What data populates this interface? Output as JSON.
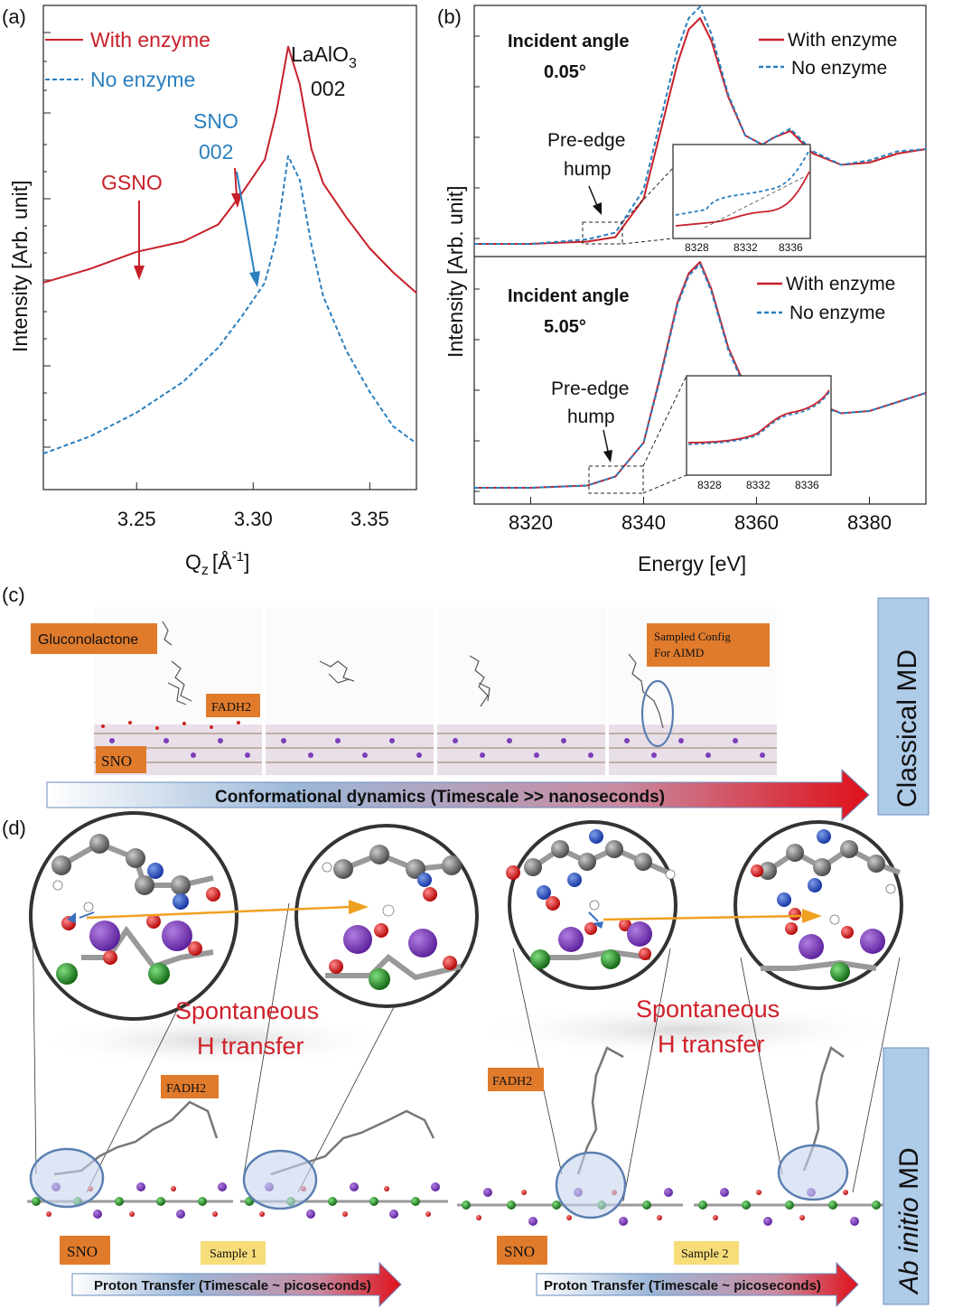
{
  "panel_labels": {
    "a": "(a)",
    "b": "(b)",
    "c": "(c)",
    "d": "(d)"
  },
  "colors": {
    "red": "#c8202a",
    "blue": "#2a7fbf",
    "orange": "#e07b2c",
    "sidebox": "#aecbe8"
  },
  "panel_a": {
    "legend_with": "With enzyme",
    "legend_without": "No enzyme",
    "label_lao": "LaAlO",
    "label_lao_sub": "3",
    "label_lao_002": "002",
    "label_sno": "SNO",
    "label_sno_002": "002",
    "label_gsno": "GSNO",
    "ylabel": "Intensity [Arb. unit]",
    "xlabel_q": "Q",
    "xlabel_sub": "z",
    "xlabel_unit": "[Å",
    "xlabel_exp": "-1",
    "xlabel_close": "]",
    "xticks": [
      "3.25",
      "3.30",
      "3.35"
    ]
  },
  "panel_b": {
    "top_title_1": "Incident angle",
    "top_title_2": "0.05°",
    "bottom_title_1": "Incident angle",
    "bottom_title_2": "5.05°",
    "legend_with": "With enzyme",
    "legend_without": "No enzyme",
    "preedge_1": "Pre-edge",
    "preedge_2": "hump",
    "inset_ticks": [
      "8328",
      "8332",
      "8336"
    ],
    "ylabel": "Intensity [Arb. unit]",
    "xlabel": "Energy [eV]",
    "xticks": [
      "8320",
      "8340",
      "8360",
      "8380"
    ]
  },
  "panel_c": {
    "label_gluconolactone": "Gluconolactone",
    "label_fadh2": "FADH2",
    "label_sno": "SNO",
    "label_sampled_1": "Sampled Config",
    "label_sampled_2": "For AIMD",
    "arrow_text": "Conformational dynamics (Timescale >> nanoseconds)",
    "side_label": "Classical MD"
  },
  "panel_d": {
    "spont_1": "Spontaneous",
    "spont_2": "H transfer",
    "label_fadh2": "FADH2",
    "label_sno": "SNO",
    "sample_1": "Sample 1",
    "sample_2": "Sample 2",
    "arrow_text": "Proton Transfer (Timescale ~ picoseconds)",
    "side_label_italic": "Ab initio",
    "side_label_rest": " MD"
  },
  "chart_data": [
    {
      "type": "line",
      "title": "(a)",
      "xlabel": "Qz [Å-1]",
      "ylabel": "Intensity [Arb. unit]",
      "xlim": [
        3.21,
        3.37
      ],
      "series": [
        {
          "name": "With enzyme",
          "x": [
            3.21,
            3.23,
            3.25,
            3.27,
            3.285,
            3.295,
            3.305,
            3.31,
            3.315,
            3.32,
            3.325,
            3.33,
            3.34,
            3.35,
            3.36,
            3.37
          ],
          "y": [
            6.0,
            6.4,
            6.9,
            7.2,
            7.7,
            8.6,
            9.6,
            11.0,
            12.9,
            11.8,
            9.9,
            8.9,
            7.9,
            7.0,
            6.3,
            5.7
          ]
        },
        {
          "name": "No enzyme",
          "x": [
            3.21,
            3.23,
            3.25,
            3.27,
            3.285,
            3.295,
            3.305,
            3.31,
            3.315,
            3.32,
            3.325,
            3.33,
            3.34,
            3.35,
            3.36,
            3.37
          ],
          "y": [
            1.0,
            1.5,
            2.2,
            3.1,
            4.1,
            5.0,
            6.0,
            7.3,
            9.7,
            9.0,
            7.1,
            5.6,
            4.0,
            2.8,
            1.8,
            1.3
          ]
        }
      ]
    },
    {
      "type": "line",
      "title": "Incident angle 0.05°",
      "xlabel": "Energy [eV]",
      "ylabel": "Intensity [Arb. unit]",
      "xlim": [
        8310,
        8390
      ],
      "series": [
        {
          "name": "With enzyme",
          "x": [
            8310,
            8320,
            8330,
            8335,
            8340,
            8343,
            8346,
            8348,
            8350,
            8352,
            8355,
            8358,
            8361,
            8363,
            8366,
            8370,
            8375,
            8380,
            8385,
            8390
          ],
          "y": [
            0.0,
            0.0,
            0.01,
            0.03,
            0.2,
            0.5,
            0.8,
            0.95,
            1.0,
            0.9,
            0.65,
            0.48,
            0.44,
            0.47,
            0.5,
            0.4,
            0.35,
            0.36,
            0.4,
            0.42
          ]
        },
        {
          "name": "No enzyme",
          "x": [
            8310,
            8320,
            8330,
            8335,
            8340,
            8343,
            8346,
            8348,
            8350,
            8352,
            8355,
            8358,
            8361,
            8363,
            8366,
            8370,
            8375,
            8380,
            8385,
            8390
          ],
          "y": [
            0.0,
            0.0,
            0.02,
            0.05,
            0.24,
            0.55,
            0.86,
            1.0,
            1.05,
            0.93,
            0.66,
            0.48,
            0.44,
            0.47,
            0.51,
            0.41,
            0.35,
            0.37,
            0.41,
            0.42
          ]
        }
      ]
    },
    {
      "type": "line",
      "title": "Incident angle 5.05°",
      "xlabel": "Energy [eV]",
      "ylabel": "Intensity [Arb. unit]",
      "xlim": [
        8310,
        8390
      ],
      "series": [
        {
          "name": "With enzyme",
          "x": [
            8310,
            8320,
            8330,
            8335,
            8340,
            8343,
            8346,
            8348,
            8350,
            8352,
            8355,
            8358,
            8361,
            8363,
            8366,
            8370,
            8375,
            8380,
            8385,
            8390
          ],
          "y": [
            0.0,
            0.0,
            0.01,
            0.05,
            0.2,
            0.5,
            0.82,
            0.95,
            1.0,
            0.88,
            0.62,
            0.45,
            0.4,
            0.42,
            0.46,
            0.38,
            0.33,
            0.34,
            0.38,
            0.42
          ]
        },
        {
          "name": "No enzyme",
          "x": [
            8310,
            8320,
            8330,
            8335,
            8340,
            8343,
            8346,
            8348,
            8350,
            8352,
            8355,
            8358,
            8361,
            8363,
            8366,
            8370,
            8375,
            8380,
            8385,
            8390
          ],
          "y": [
            0.0,
            0.0,
            0.01,
            0.05,
            0.2,
            0.49,
            0.81,
            0.94,
            0.99,
            0.87,
            0.61,
            0.44,
            0.39,
            0.41,
            0.45,
            0.37,
            0.33,
            0.34,
            0.38,
            0.42
          ]
        }
      ]
    }
  ]
}
